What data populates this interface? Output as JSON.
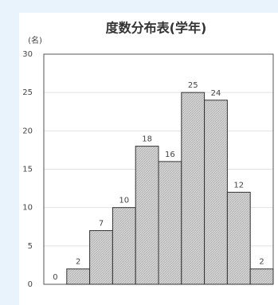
{
  "chart_data": {
    "type": "bar",
    "title": "度数分布表(学年)",
    "ylabel": "(名)",
    "categories": [
      null,
      null,
      null,
      null,
      null,
      null,
      null,
      null,
      null,
      null
    ],
    "values": [
      0,
      2,
      7,
      10,
      18,
      16,
      25,
      24,
      12,
      2
    ],
    "color": "#c8c8c8",
    "ylim": [
      0,
      30
    ],
    "yticks": [
      0,
      5,
      10,
      15,
      20,
      25,
      30
    ],
    "grid": true
  }
}
